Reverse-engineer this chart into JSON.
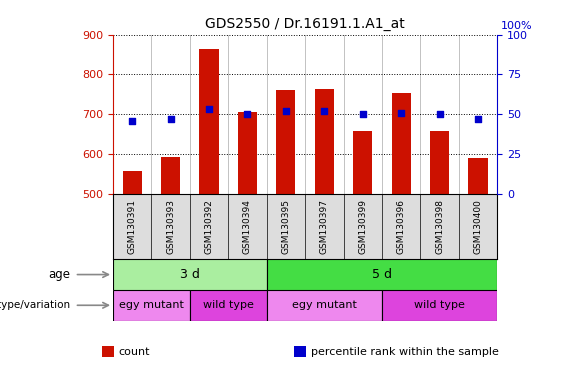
{
  "title": "GDS2550 / Dr.16191.1.A1_at",
  "samples": [
    "GSM130391",
    "GSM130393",
    "GSM130392",
    "GSM130394",
    "GSM130395",
    "GSM130397",
    "GSM130399",
    "GSM130396",
    "GSM130398",
    "GSM130400"
  ],
  "counts": [
    557,
    592,
    863,
    706,
    760,
    764,
    657,
    754,
    659,
    590
  ],
  "percentile_ranks": [
    46,
    47,
    53,
    50,
    52,
    52,
    50,
    51,
    50,
    47
  ],
  "ylim_left": [
    500,
    900
  ],
  "ylim_right": [
    0,
    100
  ],
  "yticks_left": [
    500,
    600,
    700,
    800,
    900
  ],
  "yticks_right": [
    0,
    25,
    50,
    75,
    100
  ],
  "bar_color": "#cc1100",
  "dot_color": "#0000cc",
  "age_labels": [
    {
      "label": "3 d",
      "start": 0,
      "end": 4,
      "color": "#aaeea0"
    },
    {
      "label": "5 d",
      "start": 4,
      "end": 10,
      "color": "#44dd44"
    }
  ],
  "genotype_labels": [
    {
      "label": "egy mutant",
      "start": 0,
      "end": 2,
      "color": "#ee88ee"
    },
    {
      "label": "wild type",
      "start": 2,
      "end": 4,
      "color": "#dd44dd"
    },
    {
      "label": "egy mutant",
      "start": 4,
      "end": 7,
      "color": "#ee88ee"
    },
    {
      "label": "wild type",
      "start": 7,
      "end": 10,
      "color": "#dd44dd"
    }
  ],
  "legend_items": [
    {
      "label": "count",
      "color": "#cc1100"
    },
    {
      "label": "percentile rank within the sample",
      "color": "#0000cc"
    }
  ],
  "col_divider_color": "#aaaaaa",
  "left_axis_color": "#cc1100",
  "right_axis_color": "#0000cc",
  "tick_bg_color": "#dddddd",
  "fig_width": 5.65,
  "fig_height": 3.84,
  "dpi": 100
}
